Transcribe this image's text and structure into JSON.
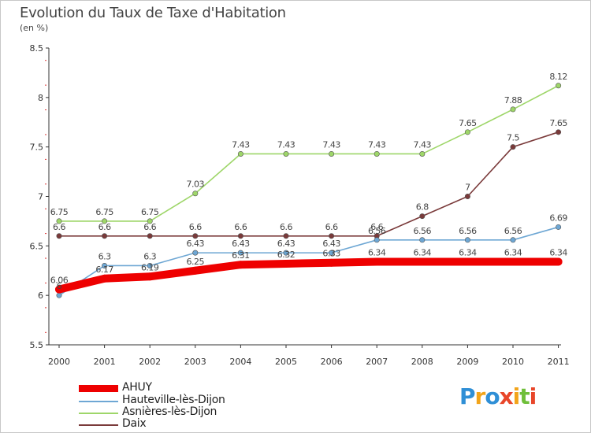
{
  "header": {
    "title": "Evolution du Taux de Taxe d'Habitation",
    "subtitle": "(en %)"
  },
  "logo": {
    "text": "Proxiti",
    "letters": [
      "P",
      "r",
      "o",
      "x",
      "i",
      "t",
      "i"
    ],
    "colors": [
      "#2f8fd6",
      "#f2a41a",
      "#2f8fd6",
      "#e8462a",
      "#f2a41a",
      "#6fbf3a",
      "#e8462a"
    ]
  },
  "chart_data": {
    "type": "line",
    "title": "Evolution du Taux de Taxe d'Habitation",
    "ylabel": "(en %)",
    "xlabel": "",
    "grid": false,
    "ylim": [
      5.5,
      8.5
    ],
    "yticks": [
      5.5,
      6,
      6.5,
      7,
      7.5,
      8,
      8.5
    ],
    "ytick_labels": [
      "5.5",
      "6",
      "6.5",
      "7",
      "7.5",
      "8",
      "8.5"
    ],
    "categories": [
      "2000",
      "2001",
      "2002",
      "2003",
      "2004",
      "2005",
      "2006",
      "2007",
      "2008",
      "2009",
      "2010",
      "2011"
    ],
    "series": [
      {
        "name": "AHUY",
        "color": "#ee0000",
        "values": [
          6.06,
          6.17,
          6.19,
          6.25,
          6.31,
          6.32,
          6.33,
          6.34,
          6.34,
          6.34,
          6.34,
          6.34
        ],
        "labels": [
          "6.06",
          "6.17",
          "6.19",
          "6.25",
          "6.31",
          "6.32",
          "6.33",
          "6.34",
          "6.34",
          "6.34",
          "6.34",
          "6.34"
        ]
      },
      {
        "name": "Hauteville-lès-Dijon",
        "color": "#6ea7d4",
        "values": [
          6.0,
          6.3,
          6.3,
          6.43,
          6.43,
          6.43,
          6.43,
          6.56,
          6.56,
          6.56,
          6.56,
          6.69
        ],
        "labels": [
          "6",
          "6.3",
          "6.3",
          "6.43",
          "6.43",
          "6.43",
          "6.43",
          "6.56",
          "6.56",
          "6.56",
          "6.56",
          "6.69"
        ]
      },
      {
        "name": "Asnières-lès-Dijon",
        "color": "#9ed669",
        "values": [
          6.75,
          6.75,
          6.75,
          7.03,
          7.43,
          7.43,
          7.43,
          7.43,
          7.43,
          7.65,
          7.88,
          8.12
        ],
        "labels": [
          "6.75",
          "6.75",
          "6.75",
          "7.03",
          "7.43",
          "7.43",
          "7.43",
          "7.43",
          "7.43",
          "7.65",
          "7.88",
          "8.12"
        ]
      },
      {
        "name": "Daix",
        "color": "#7a3a3a",
        "values": [
          6.6,
          6.6,
          6.6,
          6.6,
          6.6,
          6.6,
          6.6,
          6.6,
          6.8,
          7.0,
          7.5,
          7.65
        ],
        "labels": [
          "6.6",
          "6.6",
          "6.6",
          "6.6",
          "6.6",
          "6.6",
          "6.6",
          "6.6",
          "6.8",
          "7",
          "7.5",
          "7.65"
        ]
      }
    ]
  }
}
